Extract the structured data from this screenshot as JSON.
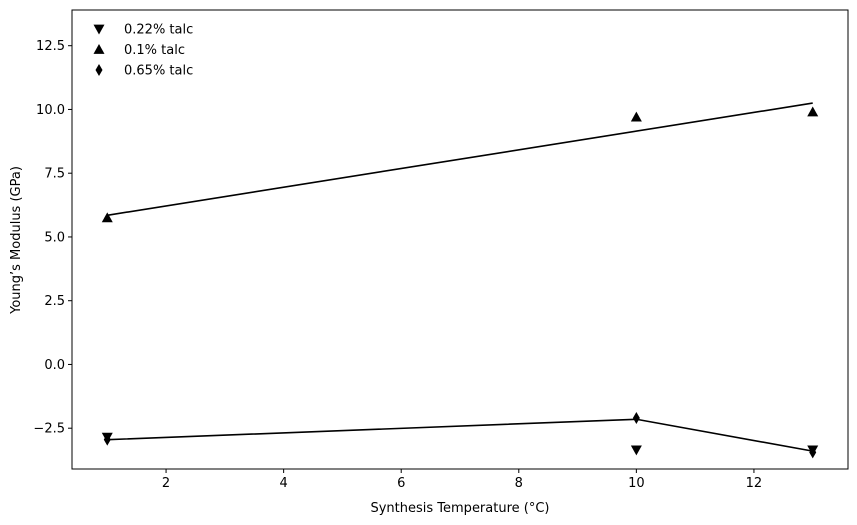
{
  "chart_data": {
    "type": "scatter",
    "title": "",
    "xlabel": "Synthesis Temperature (°C)",
    "ylabel": "Young’s Modulus (GPa)",
    "xlim": [
      0.4,
      13.6
    ],
    "ylim": [
      -4.1,
      13.9
    ],
    "x_ticks": [
      2,
      4,
      6,
      8,
      10,
      12
    ],
    "y_ticks": [
      -2.5,
      0.0,
      2.5,
      5.0,
      7.5,
      10.0,
      12.5
    ],
    "x_tick_labels": [
      "2",
      "4",
      "6",
      "8",
      "10",
      "12"
    ],
    "y_tick_labels": [
      "−2.5",
      "0.0",
      "2.5",
      "5.0",
      "7.5",
      "10.0",
      "12.5"
    ],
    "grid": false,
    "legend_position": "top-left",
    "series": [
      {
        "name": "0.22% talc",
        "marker": "triangle-down",
        "color": "#000000",
        "points": [
          [
            1,
            -2.85
          ],
          [
            10,
            -3.35
          ],
          [
            13,
            -3.35
          ]
        ]
      },
      {
        "name": "0.1% talc",
        "marker": "triangle-up",
        "color": "#000000",
        "points": [
          [
            1,
            5.75
          ],
          [
            10,
            9.7
          ],
          [
            13,
            9.9
          ]
        ]
      },
      {
        "name": "0.65% talc",
        "marker": "thin-diamond",
        "color": "#000000",
        "points": [
          [
            1,
            -2.95
          ],
          [
            10,
            -2.1
          ],
          [
            13,
            -3.45
          ]
        ]
      }
    ],
    "lines": [
      {
        "points": [
          [
            1,
            5.85
          ],
          [
            13,
            10.25
          ]
        ],
        "color": "#000000"
      },
      {
        "points": [
          [
            1,
            -2.95
          ],
          [
            10,
            -2.15
          ],
          [
            13,
            -3.4
          ]
        ],
        "color": "#000000"
      }
    ]
  }
}
